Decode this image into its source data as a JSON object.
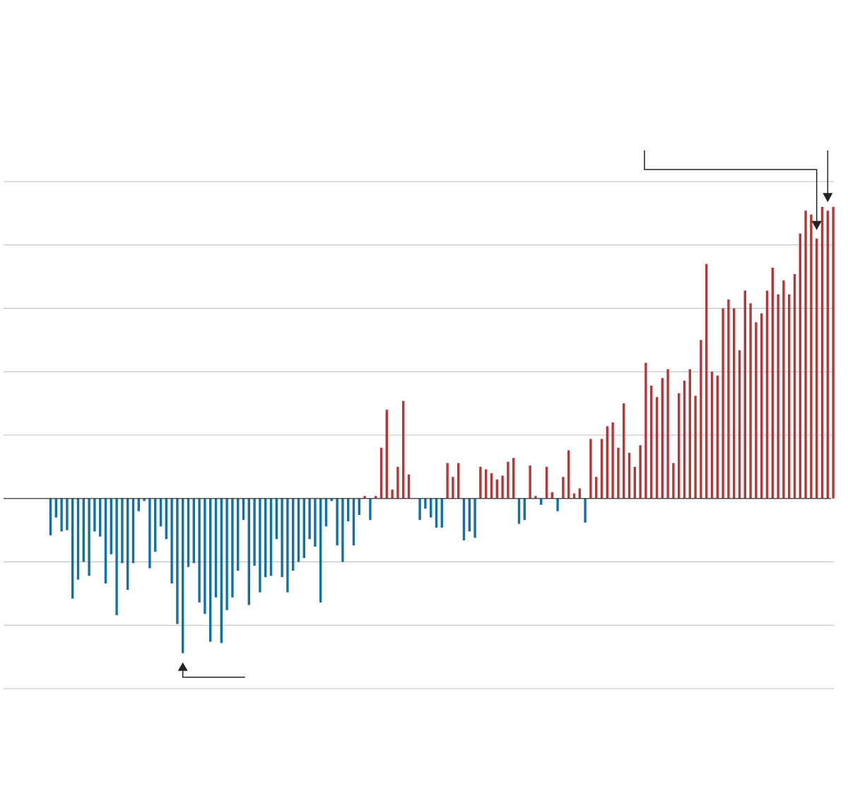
{
  "chart_data": {
    "type": "bar",
    "title": "",
    "xlabel": "",
    "ylabel": "",
    "ylim": [
      -1.5,
      2.5
    ],
    "gridlines": [
      -1.5,
      -1.0,
      -0.5,
      0,
      0.5,
      1.0,
      1.5,
      2.0,
      2.5
    ],
    "grid": true,
    "legend": "none",
    "colors": {
      "positive": "#b5373a",
      "negative": "#0f72a6",
      "zero_line": "#333333",
      "grid": "#bbbbbb",
      "annotation": "#222222"
    },
    "values": [
      -0.29,
      -0.15,
      -0.26,
      -0.25,
      -0.79,
      -0.64,
      -0.5,
      -0.61,
      -0.26,
      -0.3,
      -0.67,
      -0.44,
      -0.92,
      -0.51,
      -0.72,
      -0.51,
      -0.1,
      -0.02,
      -0.55,
      -0.42,
      -0.22,
      -0.32,
      -0.67,
      -0.99,
      -1.22,
      -0.54,
      -0.51,
      -0.82,
      -0.91,
      -1.13,
      -0.78,
      -1.14,
      -0.88,
      -0.78,
      -0.57,
      -0.17,
      -0.84,
      -0.53,
      -0.74,
      -0.62,
      -0.61,
      -0.32,
      -0.62,
      -0.74,
      -0.57,
      -0.5,
      -0.47,
      -0.32,
      -0.38,
      -0.82,
      -0.22,
      -0.02,
      -0.37,
      -0.5,
      -0.18,
      -0.37,
      -0.13,
      0.02,
      -0.17,
      0.02,
      0.4,
      0.7,
      0.07,
      0.25,
      0.77,
      0.19,
      0,
      -0.17,
      -0.08,
      -0.15,
      -0.23,
      -0.23,
      0.28,
      0.17,
      0.28,
      -0.33,
      -0.26,
      -0.31,
      0.25,
      0.23,
      0.2,
      0.15,
      0.18,
      0.29,
      0.32,
      -0.2,
      -0.17,
      0.26,
      0.02,
      -0.05,
      0.25,
      0.05,
      -0.1,
      0.17,
      0.38,
      0.04,
      0.08,
      -0.19,
      0.47,
      0.17,
      0.47,
      0.57,
      0.6,
      0.4,
      0.75,
      0.36,
      0.25,
      0.42,
      1.07,
      0.89,
      0.8,
      0.95,
      1.02,
      0.28,
      0.83,
      0.93,
      1.02,
      0.81,
      1.25,
      1.85,
      1.0,
      0.97,
      1.5,
      1.57,
      1.5,
      1.17,
      1.64,
      1.54,
      1.39,
      1.46,
      1.64,
      1.82,
      1.61,
      1.72,
      1.61,
      1.77,
      2.09,
      2.27,
      2.24,
      2.05,
      2.3,
      2.27,
      2.3
    ],
    "annotations": [
      {
        "target_index": 24,
        "direction": "up",
        "label": ""
      },
      {
        "target_index": 139,
        "direction": "down",
        "label": ""
      },
      {
        "target_index": 141,
        "direction": "down",
        "label": ""
      }
    ]
  }
}
